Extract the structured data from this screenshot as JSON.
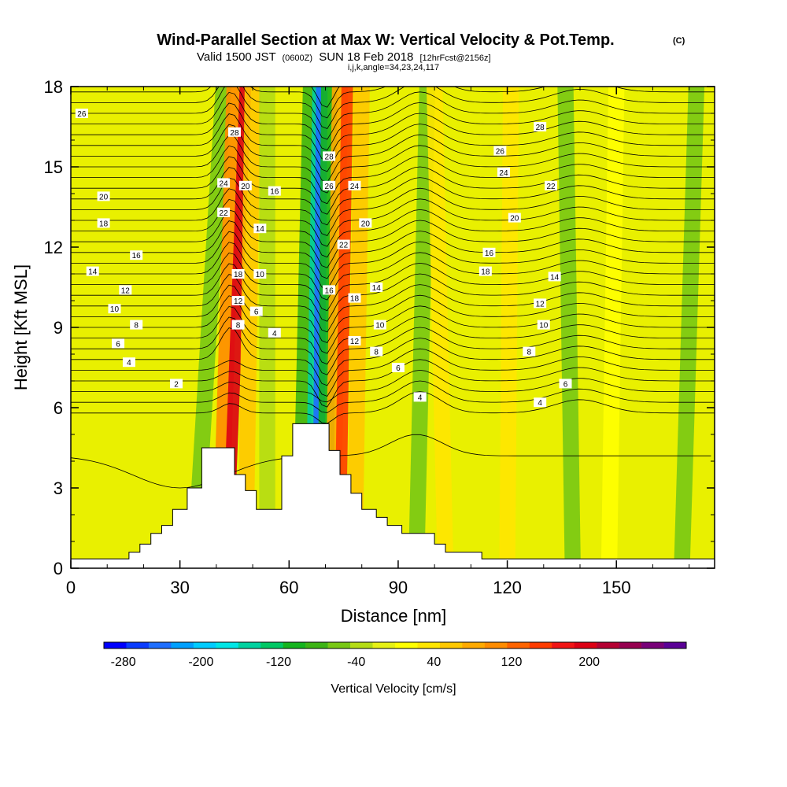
{
  "header": {
    "title": "Wind-Parallel Section at Max W: Vertical Velocity & Pot.Temp.",
    "title_mark": "(C)",
    "valid_prefix": "Valid 1500 JST",
    "valid_utc": "(0600Z)",
    "valid_date": "SUN 18 Feb 2018",
    "forecast": "[12hrFcst@2156z]",
    "ijk": "i,j,k,angle=34,23,24,117"
  },
  "chart_data": {
    "type": "heatmap",
    "xlabel": "Distance [nm]",
    "ylabel": "Height [Kft MSL]",
    "xlim": [
      0,
      177
    ],
    "ylim": [
      0,
      18
    ],
    "x_ticks": [
      "0",
      "30",
      "60",
      "90",
      "120",
      "150"
    ],
    "y_ticks": [
      "0",
      "3",
      "6",
      "9",
      "12",
      "15",
      "18"
    ],
    "colorbar": {
      "label": "Vertical Velocity [cm/s]",
      "tick_labels": [
        "-280",
        "-200",
        "-120",
        "-40",
        "40",
        "120",
        "200"
      ],
      "tick_values": [
        -280,
        -200,
        -120,
        -40,
        40,
        120,
        200
      ],
      "range": [
        -300,
        300
      ],
      "colors": [
        "#0000ff",
        "#0a3cff",
        "#1e6eff",
        "#00a0ff",
        "#00ccff",
        "#00e6e6",
        "#00d2a0",
        "#00c864",
        "#14b41e",
        "#3cb414",
        "#78c814",
        "#b4dc14",
        "#e6f014",
        "#ffff00",
        "#ffe600",
        "#ffc800",
        "#ffaa00",
        "#ff8c00",
        "#ff6400",
        "#ff3c00",
        "#f01414",
        "#dc0014",
        "#b40032",
        "#960050",
        "#780078",
        "#5a0096"
      ]
    },
    "w_bands": [
      {
        "x_base": 34,
        "x_top": 42,
        "w": -60
      },
      {
        "x_base": 41,
        "x_top": 45,
        "w": 100
      },
      {
        "x_base": 43,
        "x_top": 48,
        "w": 200
      },
      {
        "x_base": 48,
        "x_top": 50,
        "w": 60
      },
      {
        "x_base": 54,
        "x_top": 54,
        "w": -40
      },
      {
        "x_base": 63,
        "x_top": 66,
        "w": -80
      },
      {
        "x_base": 66,
        "x_top": 68,
        "w": -160
      },
      {
        "x_base": 68,
        "x_top": 69,
        "w": -240
      },
      {
        "x_base": 70,
        "x_top": 71,
        "w": -100
      },
      {
        "x_base": 72,
        "x_top": 74,
        "w": 80
      },
      {
        "x_base": 74,
        "x_top": 76,
        "w": 160
      },
      {
        "x_base": 78,
        "x_top": 80,
        "w": 60
      },
      {
        "x_base": 95,
        "x_top": 98,
        "w": -60
      },
      {
        "x_base": 103,
        "x_top": 100,
        "w": 30
      },
      {
        "x_base": 120,
        "x_top": 121,
        "w": 30
      },
      {
        "x_base": 138,
        "x_top": 136,
        "w": -50
      },
      {
        "x_base": 148,
        "x_top": 150,
        "w": 20
      },
      {
        "x_base": 168,
        "x_top": 172,
        "w": -50
      }
    ],
    "contour_labels": [
      {
        "text": "26",
        "x": 3,
        "y": 17.0
      },
      {
        "text": "20",
        "x": 9,
        "y": 13.9
      },
      {
        "text": "18",
        "x": 9,
        "y": 12.9
      },
      {
        "text": "16",
        "x": 18,
        "y": 11.7
      },
      {
        "text": "14",
        "x": 6,
        "y": 11.1
      },
      {
        "text": "12",
        "x": 15,
        "y": 10.4
      },
      {
        "text": "10",
        "x": 12,
        "y": 9.7
      },
      {
        "text": "8",
        "x": 18,
        "y": 9.1
      },
      {
        "text": "6",
        "x": 13,
        "y": 8.4
      },
      {
        "text": "4",
        "x": 16,
        "y": 7.7
      },
      {
        "text": "2",
        "x": 29,
        "y": 6.9
      },
      {
        "text": "28",
        "x": 45,
        "y": 16.3
      },
      {
        "text": "24",
        "x": 42,
        "y": 14.4
      },
      {
        "text": "20",
        "x": 48,
        "y": 14.3
      },
      {
        "text": "16",
        "x": 56,
        "y": 14.1
      },
      {
        "text": "22",
        "x": 42,
        "y": 13.3
      },
      {
        "text": "14",
        "x": 52,
        "y": 12.7
      },
      {
        "text": "10",
        "x": 52,
        "y": 11.0
      },
      {
        "text": "18",
        "x": 46,
        "y": 11.0
      },
      {
        "text": "12",
        "x": 46,
        "y": 10.0
      },
      {
        "text": "6",
        "x": 51,
        "y": 9.6
      },
      {
        "text": "8",
        "x": 46,
        "y": 9.1
      },
      {
        "text": "4",
        "x": 56,
        "y": 8.8
      },
      {
        "text": "28",
        "x": 71,
        "y": 15.4
      },
      {
        "text": "26",
        "x": 71,
        "y": 14.3
      },
      {
        "text": "24",
        "x": 78,
        "y": 14.3
      },
      {
        "text": "20",
        "x": 81,
        "y": 12.9
      },
      {
        "text": "22",
        "x": 75,
        "y": 12.1
      },
      {
        "text": "16",
        "x": 71,
        "y": 10.4
      },
      {
        "text": "14",
        "x": 84,
        "y": 10.5
      },
      {
        "text": "18",
        "x": 78,
        "y": 10.1
      },
      {
        "text": "10",
        "x": 85,
        "y": 9.1
      },
      {
        "text": "12",
        "x": 78,
        "y": 8.5
      },
      {
        "text": "8",
        "x": 84,
        "y": 8.1
      },
      {
        "text": "6",
        "x": 90,
        "y": 7.5
      },
      {
        "text": "4",
        "x": 96,
        "y": 6.4
      },
      {
        "text": "28",
        "x": 129,
        "y": 16.5
      },
      {
        "text": "26",
        "x": 118,
        "y": 15.6
      },
      {
        "text": "24",
        "x": 119,
        "y": 14.8
      },
      {
        "text": "22",
        "x": 132,
        "y": 14.3
      },
      {
        "text": "20",
        "x": 122,
        "y": 13.1
      },
      {
        "text": "16",
        "x": 115,
        "y": 11.8
      },
      {
        "text": "18",
        "x": 114,
        "y": 11.1
      },
      {
        "text": "14",
        "x": 133,
        "y": 10.9
      },
      {
        "text": "12",
        "x": 129,
        "y": 9.9
      },
      {
        "text": "10",
        "x": 130,
        "y": 9.1
      },
      {
        "text": "8",
        "x": 126,
        "y": 8.1
      },
      {
        "text": "6",
        "x": 136,
        "y": 6.9
      },
      {
        "text": "4",
        "x": 129,
        "y": 6.2
      }
    ],
    "terrain_nm_kft": [
      [
        0,
        0.35
      ],
      [
        16,
        0.35
      ],
      [
        16,
        0.6
      ],
      [
        19,
        0.6
      ],
      [
        19,
        0.9
      ],
      [
        22,
        0.9
      ],
      [
        22,
        1.3
      ],
      [
        25,
        1.3
      ],
      [
        25,
        1.6
      ],
      [
        28,
        1.6
      ],
      [
        28,
        2.2
      ],
      [
        32,
        2.2
      ],
      [
        32,
        3.0
      ],
      [
        36,
        3.0
      ],
      [
        36,
        4.5
      ],
      [
        45,
        4.5
      ],
      [
        45,
        3.5
      ],
      [
        48,
        3.5
      ],
      [
        48,
        2.9
      ],
      [
        51,
        2.9
      ],
      [
        51,
        2.2
      ],
      [
        58,
        2.2
      ],
      [
        58,
        4.2
      ],
      [
        61,
        4.2
      ],
      [
        61,
        5.4
      ],
      [
        71,
        5.4
      ],
      [
        71,
        4.4
      ],
      [
        74,
        4.4
      ],
      [
        74,
        3.5
      ],
      [
        77,
        3.5
      ],
      [
        77,
        2.8
      ],
      [
        80,
        2.8
      ],
      [
        80,
        2.2
      ],
      [
        84,
        2.2
      ],
      [
        84,
        1.9
      ],
      [
        87,
        1.9
      ],
      [
        87,
        1.6
      ],
      [
        91,
        1.6
      ],
      [
        91,
        1.3
      ],
      [
        100,
        1.3
      ],
      [
        100,
        0.9
      ],
      [
        103,
        0.9
      ],
      [
        103,
        0.6
      ],
      [
        113,
        0.6
      ],
      [
        113,
        0.35
      ],
      [
        177,
        0.35
      ]
    ]
  }
}
